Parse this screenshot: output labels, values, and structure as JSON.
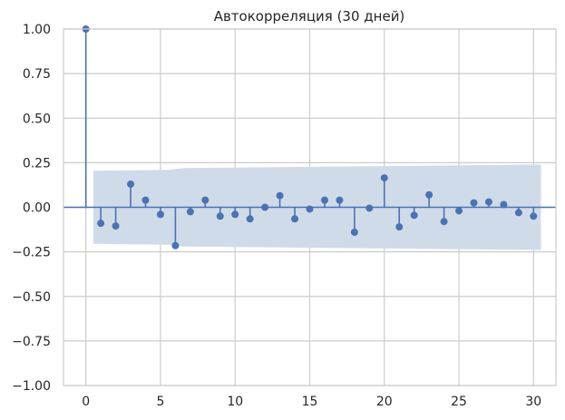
{
  "chart_data": {
    "type": "stem",
    "title": "Автокорреляция (30 дней)",
    "xlabel": "",
    "ylabel": "",
    "xlim": [
      -1.5,
      31.5
    ],
    "ylim": [
      -1.0,
      1.0
    ],
    "x_ticks": [
      0,
      5,
      10,
      15,
      20,
      25,
      30
    ],
    "x_tick_labels": [
      "0",
      "5",
      "10",
      "15",
      "20",
      "25",
      "30"
    ],
    "y_ticks": [
      -1.0,
      -0.75,
      -0.5,
      -0.25,
      0.0,
      0.25,
      0.5,
      0.75,
      1.0
    ],
    "y_tick_labels": [
      "−1.00",
      "−0.75",
      "−0.50",
      "−0.25",
      "0.00",
      "0.25",
      "0.50",
      "0.75",
      "1.00"
    ],
    "grid": true,
    "series": [
      {
        "x": [
          0,
          1,
          2,
          3,
          4,
          5,
          6,
          7,
          8,
          9,
          10,
          11,
          12,
          13,
          14,
          15,
          16,
          17,
          18,
          19,
          20,
          21,
          22,
          23,
          24,
          25,
          26,
          27,
          28,
          29,
          30
        ],
        "values": [
          1.0,
          -0.09,
          -0.105,
          0.13,
          0.04,
          -0.04,
          -0.215,
          -0.025,
          0.04,
          -0.05,
          -0.04,
          -0.065,
          0.0,
          0.065,
          -0.065,
          -0.01,
          0.04,
          0.04,
          -0.14,
          -0.005,
          0.165,
          -0.11,
          -0.045,
          0.07,
          -0.08,
          -0.02,
          0.025,
          0.03,
          0.015,
          -0.03,
          -0.05
        ]
      }
    ],
    "confidence_band": {
      "x": [
        0.5,
        5.5,
        6.5,
        30.5
      ],
      "upper": [
        0.205,
        0.21,
        0.22,
        0.24
      ],
      "lower": [
        -0.205,
        -0.21,
        -0.22,
        -0.24
      ]
    },
    "colors": {
      "series": "#4c72b0",
      "band": "#d0dbea",
      "grid": "#cccccc",
      "frame": "#cccccc",
      "zero_line": "#4c72b0"
    }
  }
}
